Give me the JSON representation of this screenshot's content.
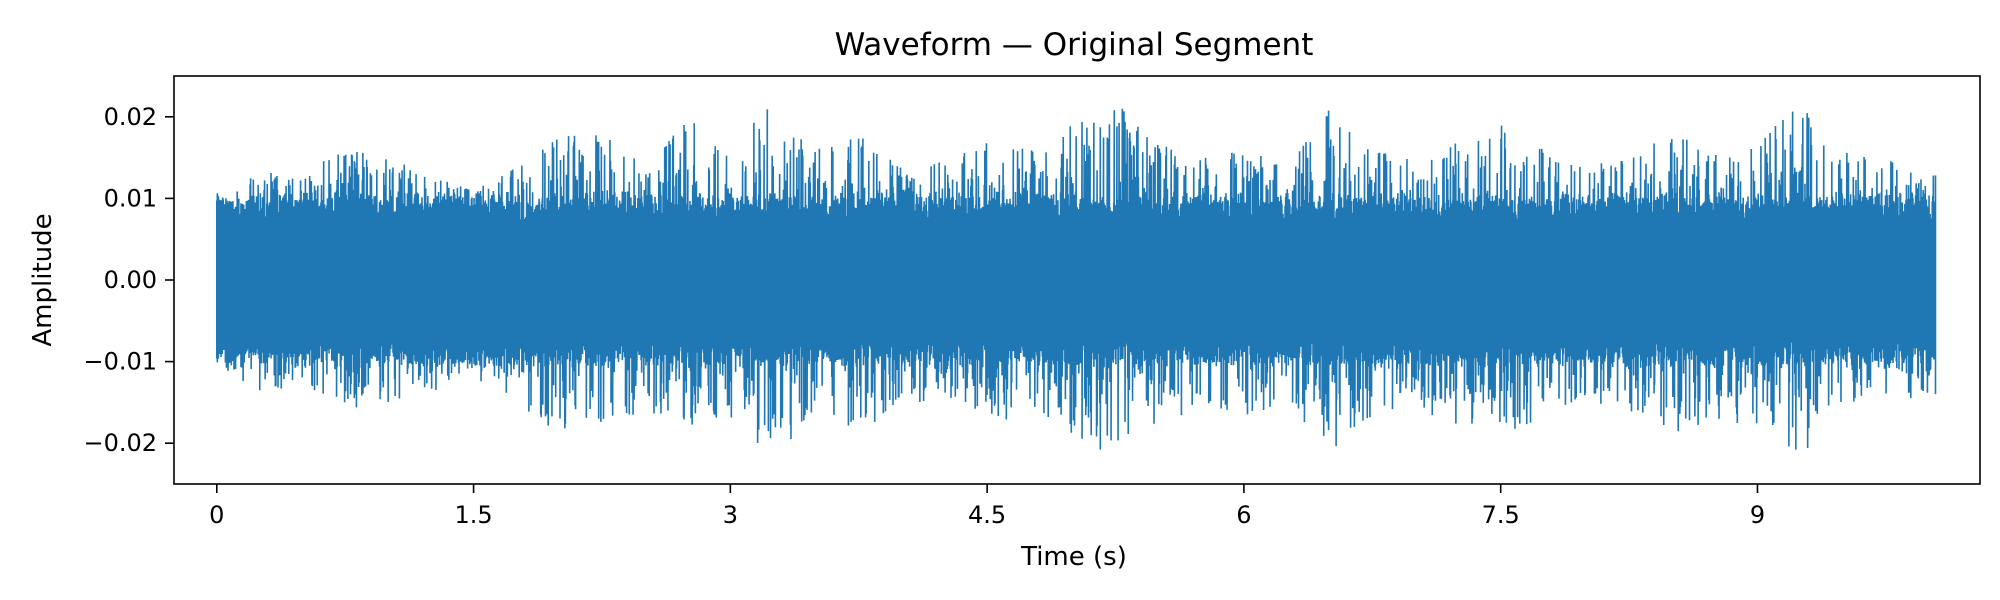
{
  "chart_data": {
    "type": "line",
    "title": "Waveform — Original Segment",
    "xlabel": "Time (s)",
    "ylabel": "Amplitude",
    "xlim": [
      -0.25,
      10.3
    ],
    "ylim": [
      -0.025,
      0.025
    ],
    "x_ticks": [
      0,
      1.5,
      3,
      4.5,
      6,
      7.5,
      9
    ],
    "x_tick_labels": [
      "0",
      "1.5",
      "3",
      "4.5",
      "6",
      "7.5",
      "9"
    ],
    "y_ticks": [
      0.02,
      0.01,
      0.0,
      -0.01,
      -0.02
    ],
    "y_tick_labels": [
      "0.02",
      "0.01",
      "0.00",
      "−0.01",
      "−0.02"
    ],
    "grid": false,
    "legend": "none",
    "color": "#1f77b4",
    "series": [
      {
        "x": [
          0,
          0.25,
          0.5,
          0.75,
          1.0,
          1.25,
          1.5,
          1.75,
          2.0,
          2.25,
          2.5,
          2.75,
          3.0,
          3.25,
          3.5,
          3.75,
          4.0,
          4.25,
          4.5,
          4.75,
          5.0,
          5.25,
          5.5,
          5.75,
          6.0,
          6.25,
          6.5,
          6.75,
          7.0,
          7.25,
          7.5,
          7.75,
          8.0,
          8.25,
          8.5,
          8.75,
          9.0,
          9.25,
          9.5,
          9.75,
          10.0,
          10.04
        ],
        "peak_max": [
          0.011,
          0.013,
          0.014,
          0.016,
          0.015,
          0.013,
          0.011,
          0.014,
          0.018,
          0.019,
          0.015,
          0.02,
          0.017,
          0.022,
          0.016,
          0.018,
          0.014,
          0.015,
          0.017,
          0.016,
          0.019,
          0.022,
          0.017,
          0.015,
          0.016,
          0.014,
          0.021,
          0.016,
          0.015,
          0.017,
          0.019,
          0.016,
          0.014,
          0.015,
          0.018,
          0.016,
          0.017,
          0.022,
          0.016,
          0.015,
          0.013,
          0.013
        ],
        "peak_min": [
          -0.011,
          -0.014,
          -0.013,
          -0.016,
          -0.015,
          -0.014,
          -0.012,
          -0.015,
          -0.019,
          -0.018,
          -0.016,
          -0.018,
          -0.017,
          -0.022,
          -0.016,
          -0.019,
          -0.015,
          -0.016,
          -0.018,
          -0.017,
          -0.019,
          -0.022,
          -0.018,
          -0.016,
          -0.017,
          -0.015,
          -0.021,
          -0.017,
          -0.016,
          -0.018,
          -0.019,
          -0.017,
          -0.015,
          -0.016,
          -0.019,
          -0.017,
          -0.018,
          -0.022,
          -0.017,
          -0.016,
          -0.014,
          -0.014
        ]
      }
    ]
  }
}
